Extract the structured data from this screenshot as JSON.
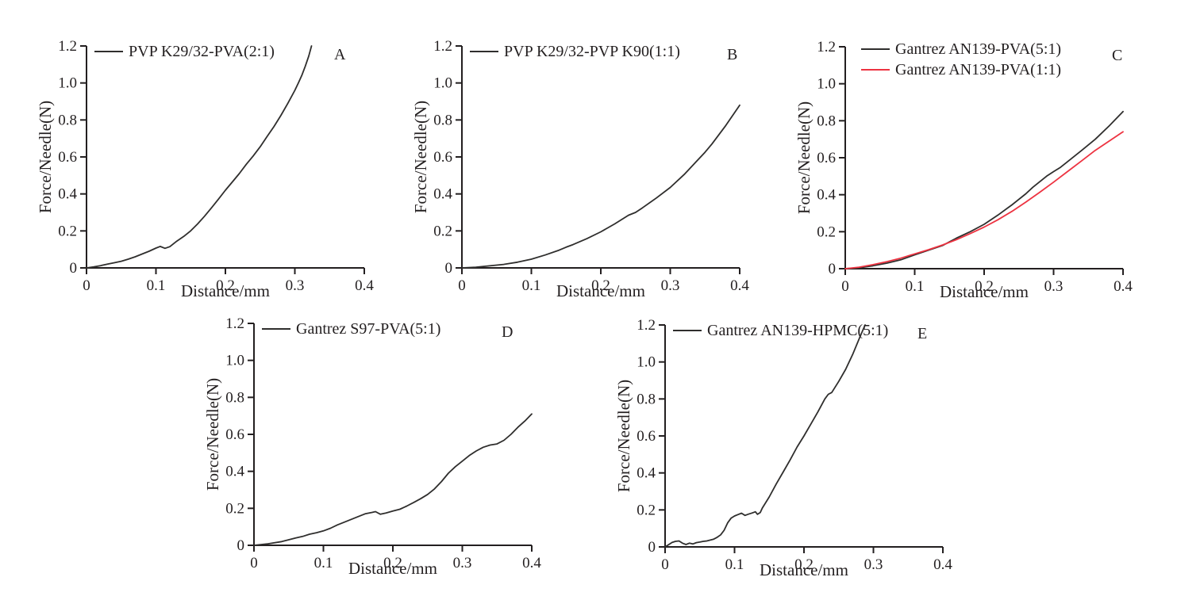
{
  "figure": {
    "background": "#ffffff",
    "axis_color": "#231f20",
    "text_color": "#231f20"
  },
  "chart_data": [
    {
      "type": "line",
      "panel": "A",
      "xlabel": "Distance/mm",
      "ylabel": "Force/Needle(N)",
      "xlim": [
        0,
        0.4
      ],
      "ylim": [
        0,
        1.2
      ],
      "xticks": [
        "0",
        "0.1",
        "0.2",
        "0.3",
        "0.4"
      ],
      "yticks": [
        "0",
        "0.2",
        "0.4",
        "0.6",
        "0.8",
        "1.0",
        "1.2"
      ],
      "grid": false,
      "legend_position": "top-left",
      "series": [
        {
          "name": "PVP K29/32-PVA(2:1)",
          "color": "#2f2e2d",
          "points": [
            [
              0,
              0
            ],
            [
              0.01,
              0.005
            ],
            [
              0.02,
              0.012
            ],
            [
              0.03,
              0.02
            ],
            [
              0.04,
              0.028
            ],
            [
              0.05,
              0.036
            ],
            [
              0.06,
              0.047
            ],
            [
              0.07,
              0.06
            ],
            [
              0.08,
              0.075
            ],
            [
              0.09,
              0.09
            ],
            [
              0.1,
              0.107
            ],
            [
              0.106,
              0.116
            ],
            [
              0.113,
              0.106
            ],
            [
              0.12,
              0.115
            ],
            [
              0.13,
              0.145
            ],
            [
              0.14,
              0.17
            ],
            [
              0.15,
              0.2
            ],
            [
              0.16,
              0.238
            ],
            [
              0.17,
              0.28
            ],
            [
              0.18,
              0.325
            ],
            [
              0.19,
              0.372
            ],
            [
              0.2,
              0.42
            ],
            [
              0.21,
              0.465
            ],
            [
              0.22,
              0.51
            ],
            [
              0.23,
              0.56
            ],
            [
              0.24,
              0.605
            ],
            [
              0.25,
              0.655
            ],
            [
              0.26,
              0.71
            ],
            [
              0.27,
              0.765
            ],
            [
              0.28,
              0.825
            ],
            [
              0.29,
              0.89
            ],
            [
              0.3,
              0.96
            ],
            [
              0.305,
              1.0
            ],
            [
              0.31,
              1.04
            ],
            [
              0.315,
              1.09
            ],
            [
              0.32,
              1.145
            ],
            [
              0.324,
              1.2
            ]
          ]
        }
      ]
    },
    {
      "type": "line",
      "panel": "B",
      "xlabel": "Distance/mm",
      "ylabel": "Force/Needle(N)",
      "xlim": [
        0,
        0.4
      ],
      "ylim": [
        0,
        1.2
      ],
      "xticks": [
        "0",
        "0.1",
        "0.2",
        "0.3",
        "0.4"
      ],
      "yticks": [
        "0",
        "0.2",
        "0.4",
        "0.6",
        "0.8",
        "1.0",
        "1.2"
      ],
      "grid": false,
      "legend_position": "top-left",
      "series": [
        {
          "name": "PVP K29/32-PVP K90(1:1)",
          "color": "#2f2e2d",
          "points": [
            [
              0,
              0
            ],
            [
              0.02,
              0.004
            ],
            [
              0.04,
              0.011
            ],
            [
              0.06,
              0.019
            ],
            [
              0.08,
              0.031
            ],
            [
              0.1,
              0.047
            ],
            [
              0.12,
              0.07
            ],
            [
              0.14,
              0.096
            ],
            [
              0.15,
              0.112
            ],
            [
              0.16,
              0.126
            ],
            [
              0.18,
              0.158
            ],
            [
              0.2,
              0.195
            ],
            [
              0.22,
              0.238
            ],
            [
              0.24,
              0.285
            ],
            [
              0.25,
              0.3
            ],
            [
              0.26,
              0.325
            ],
            [
              0.28,
              0.378
            ],
            [
              0.3,
              0.435
            ],
            [
              0.32,
              0.505
            ],
            [
              0.34,
              0.585
            ],
            [
              0.35,
              0.625
            ],
            [
              0.36,
              0.67
            ],
            [
              0.38,
              0.77
            ],
            [
              0.4,
              0.88
            ]
          ]
        }
      ]
    },
    {
      "type": "line",
      "panel": "C",
      "xlabel": "Distance/mm",
      "ylabel": "Force/Needle(N)",
      "xlim": [
        0,
        0.4
      ],
      "ylim": [
        0,
        1.2
      ],
      "xticks": [
        "0",
        "0.1",
        "0.2",
        "0.3",
        "0.4"
      ],
      "yticks": [
        "0",
        "0.2",
        "0.4",
        "0.6",
        "0.8",
        "1.0",
        "1.2"
      ],
      "grid": false,
      "legend_position": "top-left",
      "series": [
        {
          "name": "Gantrez AN139-PVA(5:1)",
          "color": "#2f2e2d",
          "points": [
            [
              0,
              0
            ],
            [
              0.02,
              0.005
            ],
            [
              0.04,
              0.016
            ],
            [
              0.06,
              0.03
            ],
            [
              0.08,
              0.048
            ],
            [
              0.1,
              0.075
            ],
            [
              0.12,
              0.1
            ],
            [
              0.14,
              0.125
            ],
            [
              0.15,
              0.145
            ],
            [
              0.16,
              0.165
            ],
            [
              0.18,
              0.2
            ],
            [
              0.2,
              0.24
            ],
            [
              0.22,
              0.29
            ],
            [
              0.24,
              0.345
            ],
            [
              0.26,
              0.405
            ],
            [
              0.27,
              0.44
            ],
            [
              0.28,
              0.47
            ],
            [
              0.29,
              0.5
            ],
            [
              0.3,
              0.525
            ],
            [
              0.31,
              0.548
            ],
            [
              0.32,
              0.578
            ],
            [
              0.34,
              0.638
            ],
            [
              0.36,
              0.7
            ],
            [
              0.38,
              0.772
            ],
            [
              0.4,
              0.85
            ]
          ]
        },
        {
          "name": "Gantrez AN139-PVA(1:1)",
          "color": "#ed3341",
          "points": [
            [
              0,
              0
            ],
            [
              0.02,
              0.008
            ],
            [
              0.04,
              0.022
            ],
            [
              0.06,
              0.038
            ],
            [
              0.08,
              0.057
            ],
            [
              0.1,
              0.08
            ],
            [
              0.12,
              0.103
            ],
            [
              0.14,
              0.128
            ],
            [
              0.16,
              0.157
            ],
            [
              0.18,
              0.19
            ],
            [
              0.2,
              0.225
            ],
            [
              0.22,
              0.265
            ],
            [
              0.24,
              0.31
            ],
            [
              0.26,
              0.36
            ],
            [
              0.28,
              0.413
            ],
            [
              0.3,
              0.468
            ],
            [
              0.32,
              0.525
            ],
            [
              0.34,
              0.582
            ],
            [
              0.36,
              0.64
            ],
            [
              0.38,
              0.69
            ],
            [
              0.4,
              0.74
            ]
          ]
        }
      ]
    },
    {
      "type": "line",
      "panel": "D",
      "xlabel": "Distance/mm",
      "ylabel": "Force/Needle(N)",
      "xlim": [
        0,
        0.4
      ],
      "ylim": [
        0,
        1.2
      ],
      "xticks": [
        "0",
        "0.1",
        "0.2",
        "0.3",
        "0.4"
      ],
      "yticks": [
        "0",
        "0.2",
        "0.4",
        "0.6",
        "0.8",
        "1.0",
        "1.2"
      ],
      "grid": false,
      "legend_position": "top-left",
      "series": [
        {
          "name": "Gantrez S97-PVA(5:1)",
          "color": "#2f2e2d",
          "points": [
            [
              0,
              0
            ],
            [
              0.02,
              0.008
            ],
            [
              0.04,
              0.02
            ],
            [
              0.05,
              0.03
            ],
            [
              0.06,
              0.04
            ],
            [
              0.07,
              0.048
            ],
            [
              0.08,
              0.06
            ],
            [
              0.09,
              0.068
            ],
            [
              0.1,
              0.078
            ],
            [
              0.11,
              0.092
            ],
            [
              0.12,
              0.11
            ],
            [
              0.13,
              0.125
            ],
            [
              0.14,
              0.14
            ],
            [
              0.15,
              0.155
            ],
            [
              0.16,
              0.17
            ],
            [
              0.17,
              0.178
            ],
            [
              0.175,
              0.182
            ],
            [
              0.182,
              0.168
            ],
            [
              0.19,
              0.175
            ],
            [
              0.2,
              0.185
            ],
            [
              0.21,
              0.195
            ],
            [
              0.22,
              0.212
            ],
            [
              0.23,
              0.232
            ],
            [
              0.24,
              0.252
            ],
            [
              0.25,
              0.275
            ],
            [
              0.26,
              0.305
            ],
            [
              0.27,
              0.345
            ],
            [
              0.28,
              0.39
            ],
            [
              0.29,
              0.425
            ],
            [
              0.3,
              0.455
            ],
            [
              0.31,
              0.485
            ],
            [
              0.32,
              0.51
            ],
            [
              0.33,
              0.53
            ],
            [
              0.34,
              0.542
            ],
            [
              0.35,
              0.548
            ],
            [
              0.36,
              0.568
            ],
            [
              0.37,
              0.6
            ],
            [
              0.38,
              0.638
            ],
            [
              0.39,
              0.672
            ],
            [
              0.4,
              0.71
            ]
          ]
        }
      ]
    },
    {
      "type": "line",
      "panel": "E",
      "xlabel": "Distance/mm",
      "ylabel": "Force/Needle(N)",
      "xlim": [
        0,
        0.4
      ],
      "ylim": [
        0,
        1.2
      ],
      "xticks": [
        "0",
        "0.1",
        "0.2",
        "0.3",
        "0.4"
      ],
      "yticks": [
        "0",
        "0.2",
        "0.4",
        "0.6",
        "0.8",
        "1.0",
        "1.2"
      ],
      "grid": false,
      "legend_position": "top-left",
      "series": [
        {
          "name": "Gantrez AN139-HPMC(5:1)",
          "color": "#2f2e2d",
          "points": [
            [
              0,
              0
            ],
            [
              0.005,
              0.012
            ],
            [
              0.01,
              0.024
            ],
            [
              0.015,
              0.03
            ],
            [
              0.02,
              0.032
            ],
            [
              0.025,
              0.02
            ],
            [
              0.03,
              0.013
            ],
            [
              0.035,
              0.02
            ],
            [
              0.04,
              0.016
            ],
            [
              0.045,
              0.023
            ],
            [
              0.05,
              0.026
            ],
            [
              0.055,
              0.03
            ],
            [
              0.06,
              0.032
            ],
            [
              0.065,
              0.037
            ],
            [
              0.07,
              0.042
            ],
            [
              0.075,
              0.052
            ],
            [
              0.08,
              0.065
            ],
            [
              0.085,
              0.09
            ],
            [
              0.09,
              0.13
            ],
            [
              0.095,
              0.155
            ],
            [
              0.1,
              0.167
            ],
            [
              0.105,
              0.175
            ],
            [
              0.11,
              0.182
            ],
            [
              0.115,
              0.17
            ],
            [
              0.12,
              0.177
            ],
            [
              0.125,
              0.183
            ],
            [
              0.13,
              0.19
            ],
            [
              0.133,
              0.176
            ],
            [
              0.137,
              0.186
            ],
            [
              0.14,
              0.21
            ],
            [
              0.15,
              0.27
            ],
            [
              0.16,
              0.34
            ],
            [
              0.17,
              0.405
            ],
            [
              0.18,
              0.47
            ],
            [
              0.19,
              0.54
            ],
            [
              0.2,
              0.6
            ],
            [
              0.21,
              0.665
            ],
            [
              0.22,
              0.73
            ],
            [
              0.23,
              0.8
            ],
            [
              0.235,
              0.825
            ],
            [
              0.24,
              0.835
            ],
            [
              0.25,
              0.895
            ],
            [
              0.26,
              0.96
            ],
            [
              0.27,
              1.04
            ],
            [
              0.28,
              1.13
            ],
            [
              0.288,
              1.2
            ]
          ]
        }
      ]
    }
  ]
}
